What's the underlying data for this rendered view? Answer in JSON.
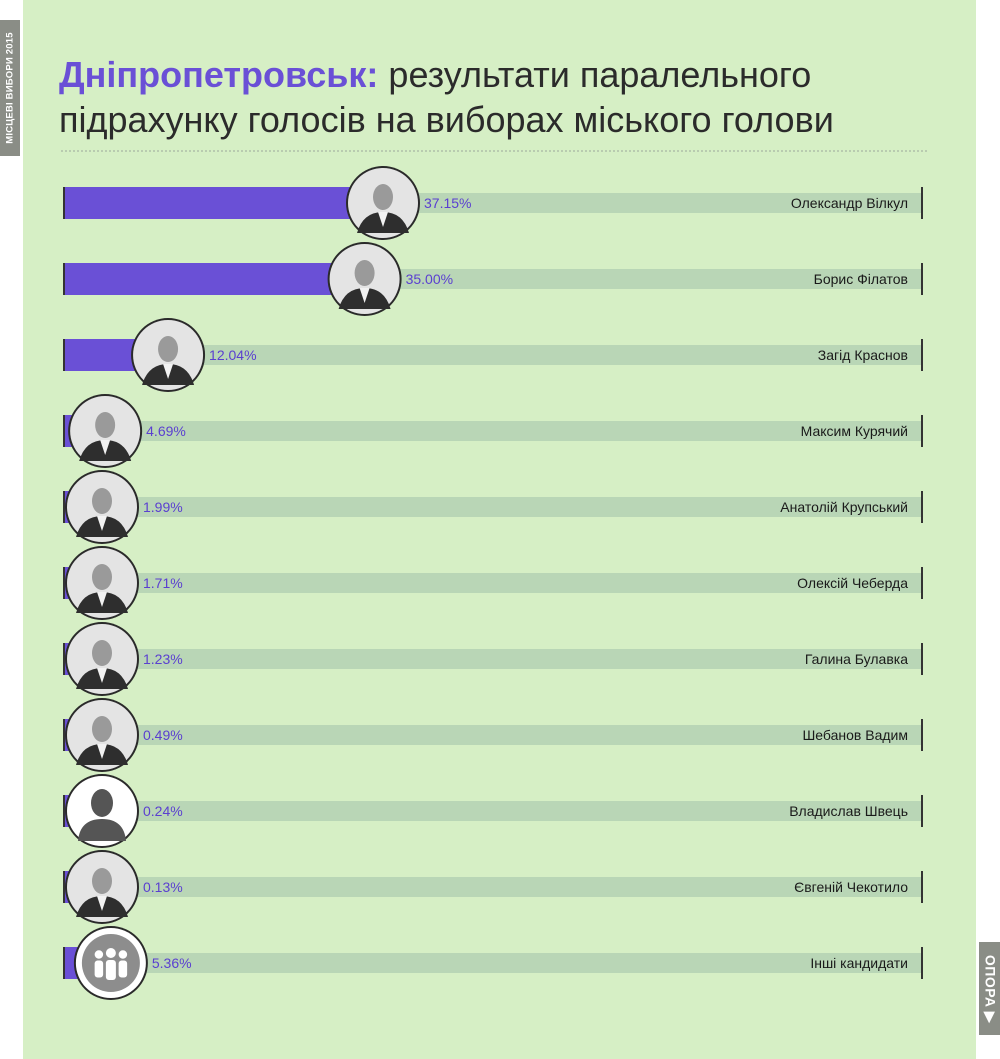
{
  "side_label": "МІСЦЕВІ ВИБОРИ 2015",
  "title": {
    "city": "Дніпропетровськ:",
    "rest": " результати паралельного підрахунку голосів на виборах міського голови"
  },
  "brand": "ОПОРА ▶",
  "colors": {
    "bar": "#6a50d6",
    "track": "#b9d6b6",
    "panel": "#d6efc5",
    "value_text": "#5a3fd0",
    "name_text": "#1a1a1a"
  },
  "chart_data": {
    "type": "bar",
    "orientation": "horizontal",
    "unit": "%",
    "xlim": [
      0,
      100
    ],
    "title": "Дніпропетровськ: результати паралельного підрахунку голосів на виборах міського голови",
    "categories": [
      "Олександр Вілкул",
      "Борис Філатов",
      "Загід Краснов",
      "Максим Курячий",
      "Анатолій Крупський",
      "Олексій Чеберда",
      "Галина Булавка",
      "Шебанов Вадим",
      "Владислав Швець",
      "Євгеній Чекотило",
      "Інші кандидати"
    ],
    "values": [
      37.15,
      35.0,
      12.04,
      4.69,
      1.99,
      1.71,
      1.23,
      0.49,
      0.24,
      0.13,
      5.36
    ],
    "labels": [
      "37.15%",
      "35.00%",
      "12.04%",
      "4.69%",
      "1.99%",
      "1.71%",
      "1.23%",
      "0.49%",
      "0.24%",
      "0.13%",
      "5.36%"
    ],
    "avatars": [
      "photo",
      "photo",
      "photo",
      "photo",
      "photo",
      "photo",
      "photo",
      "photo",
      "person-silhouette-icon",
      "photo",
      "group-icon"
    ]
  }
}
